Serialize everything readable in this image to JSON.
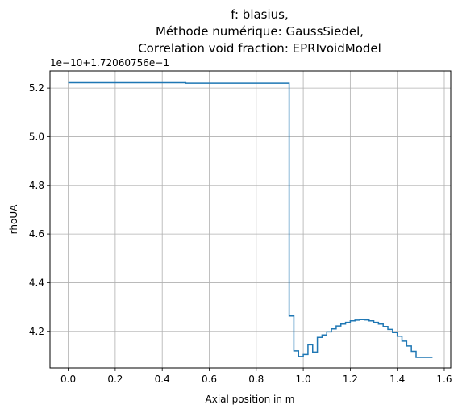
{
  "chart_data": {
    "type": "line",
    "step": "post",
    "title_lines": [
      "f: blasius,",
      "Méthode numérique: GaussSiedel,",
      "Correlation void fraction: EPRIvoidModel"
    ],
    "xlabel": "Axial position in m",
    "ylabel": "rhoUA",
    "offset_label": "1e−10+1.72060756e−1",
    "xlim": [
      -0.0775,
      1.6275
    ],
    "ylim": [
      4.05,
      5.27
    ],
    "grid": true,
    "x_ticks": [
      0.0,
      0.2,
      0.4,
      0.6,
      0.8,
      1.0,
      1.2,
      1.4,
      1.6
    ],
    "x_tick_labels": [
      "0.0",
      "0.2",
      "0.4",
      "0.6",
      "0.8",
      "1.0",
      "1.2",
      "1.4",
      "1.6"
    ],
    "y_ticks": [
      4.2,
      4.4,
      4.6,
      4.8,
      5.0,
      5.2
    ],
    "y_tick_labels": [
      "4.2",
      "4.4",
      "4.6",
      "4.8",
      "5.0",
      "5.2"
    ],
    "line_color": "#1f77b4",
    "series": [
      {
        "x": [
          0.0,
          0.5,
          0.94,
          0.96,
          0.98,
          1.0,
          1.02,
          1.04,
          1.06,
          1.08,
          1.1,
          1.12,
          1.14,
          1.16,
          1.18,
          1.2,
          1.22,
          1.24,
          1.26,
          1.28,
          1.3,
          1.32,
          1.34,
          1.36,
          1.38,
          1.4,
          1.42,
          1.44,
          1.46,
          1.48,
          1.5,
          1.52,
          1.54,
          1.55
        ],
        "y": [
          5.222,
          5.22,
          4.263,
          4.12,
          4.097,
          4.105,
          4.145,
          4.115,
          4.175,
          4.185,
          4.198,
          4.21,
          4.222,
          4.23,
          4.237,
          4.243,
          4.246,
          4.248,
          4.247,
          4.243,
          4.237,
          4.23,
          4.22,
          4.208,
          4.195,
          4.18,
          4.16,
          4.14,
          4.118,
          4.093,
          4.093,
          4.093,
          4.093,
          4.093
        ]
      }
    ]
  }
}
